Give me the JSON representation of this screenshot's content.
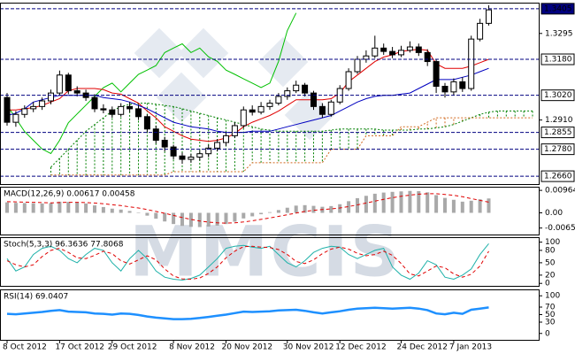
{
  "watermark": "MMCIS",
  "chart_data": [
    {
      "type": "candlestick",
      "open": [
        1.301,
        1.29,
        1.2935,
        1.296,
        1.297,
        1.2995,
        1.303,
        1.311,
        1.304,
        1.303,
        1.301,
        1.296,
        1.2955,
        1.2935,
        1.297,
        1.296,
        1.2925,
        1.287,
        1.282,
        1.279,
        1.275,
        1.2735,
        1.2745,
        1.276,
        1.2785,
        1.281,
        1.284,
        1.2885,
        1.2955,
        1.2945,
        1.297,
        1.2985,
        1.3015,
        1.304,
        1.3065,
        1.303,
        1.297,
        1.2935,
        1.299,
        1.305,
        1.3125,
        1.318,
        1.3195,
        1.323,
        1.3215,
        1.32,
        1.322,
        1.3235,
        1.321,
        1.317,
        1.306,
        1.3035,
        1.308,
        1.305,
        1.327,
        1.334
      ],
      "high": [
        1.303,
        1.295,
        1.2975,
        1.299,
        1.301,
        1.3045,
        1.313,
        1.312,
        1.306,
        1.3045,
        1.3025,
        1.298,
        1.297,
        1.2985,
        1.299,
        1.2975,
        1.2935,
        1.2885,
        1.2835,
        1.28,
        1.2765,
        1.276,
        1.2775,
        1.28,
        1.2825,
        1.2855,
        1.29,
        1.297,
        1.2975,
        1.299,
        1.3,
        1.303,
        1.3055,
        1.3085,
        1.3075,
        1.304,
        1.2985,
        1.3,
        1.3065,
        1.314,
        1.3195,
        1.322,
        1.3285,
        1.325,
        1.3235,
        1.324,
        1.326,
        1.325,
        1.3225,
        1.318,
        1.3075,
        1.3095,
        1.31,
        1.3285,
        1.336,
        1.342
      ],
      "low": [
        1.2885,
        1.288,
        1.292,
        1.2945,
        1.2955,
        1.298,
        1.302,
        1.3025,
        1.3015,
        1.2995,
        1.2945,
        1.294,
        1.292,
        1.2925,
        1.2945,
        1.291,
        1.2855,
        1.2805,
        1.277,
        1.2735,
        1.2715,
        1.272,
        1.273,
        1.2745,
        1.277,
        1.2795,
        1.283,
        1.2875,
        1.293,
        1.2935,
        1.2955,
        1.2975,
        1.3,
        1.303,
        1.3015,
        1.2955,
        1.292,
        1.2925,
        1.298,
        1.304,
        1.3115,
        1.3165,
        1.3185,
        1.32,
        1.3185,
        1.319,
        1.321,
        1.3195,
        1.315,
        1.303,
        1.301,
        1.302,
        1.3035,
        1.304,
        1.326,
        1.333
      ],
      "close": [
        1.29,
        1.2935,
        1.296,
        1.297,
        1.2995,
        1.303,
        1.311,
        1.304,
        1.303,
        1.301,
        1.296,
        1.2955,
        1.2935,
        1.297,
        1.296,
        1.2925,
        1.287,
        1.282,
        1.279,
        1.275,
        1.2735,
        1.2745,
        1.276,
        1.2785,
        1.281,
        1.284,
        1.2885,
        1.2955,
        1.2945,
        1.297,
        1.2985,
        1.3015,
        1.304,
        1.3065,
        1.303,
        1.297,
        1.2935,
        1.299,
        1.305,
        1.3125,
        1.318,
        1.3195,
        1.323,
        1.3215,
        1.32,
        1.322,
        1.3235,
        1.321,
        1.317,
        1.306,
        1.3035,
        1.308,
        1.305,
        1.327,
        1.334,
        1.34
      ],
      "up_color": "#ffffff",
      "down_color": "#000000",
      "cloud": {
        "span_a": {
          "color": "#008000",
          "values": [
            null,
            null,
            null,
            null,
            null,
            1.27,
            1.274,
            1.278,
            1.282,
            1.286,
            1.289,
            1.292,
            1.295,
            1.297,
            1.298,
            1.2985,
            1.2985,
            1.298,
            1.2975,
            1.297,
            1.296,
            1.295,
            1.294,
            1.293,
            1.292,
            1.291,
            1.29,
            1.289,
            1.288,
            1.287,
            1.2865,
            1.286,
            1.286,
            1.286,
            1.286,
            1.286,
            1.286,
            1.2865,
            1.287,
            1.287,
            1.287,
            1.287,
            1.287,
            1.2865,
            1.2865,
            1.2865,
            1.2865,
            1.287,
            1.287,
            1.2875,
            1.288,
            1.289,
            1.2905,
            1.292,
            1.2935,
            1.2945,
            1.295,
            1.295,
            1.295,
            1.295,
            1.295
          ]
        },
        "span_b": {
          "color": "#d2691e",
          "values": [
            null,
            null,
            null,
            null,
            null,
            1.2665,
            1.2665,
            1.2665,
            1.2665,
            1.2665,
            1.2665,
            1.2665,
            1.2665,
            1.2665,
            1.2665,
            1.2665,
            1.2665,
            1.2665,
            1.2665,
            1.268,
            1.268,
            1.268,
            1.268,
            1.268,
            1.268,
            1.268,
            1.268,
            1.268,
            1.272,
            1.272,
            1.272,
            1.272,
            1.272,
            1.272,
            1.272,
            1.272,
            1.272,
            1.278,
            1.278,
            1.278,
            1.278,
            1.284,
            1.284,
            1.284,
            1.284,
            1.288,
            1.288,
            1.288,
            1.29,
            1.292,
            1.292,
            1.292,
            1.292,
            1.292,
            1.292,
            1.292,
            1.292,
            1.292,
            1.292,
            1.292,
            1.292
          ]
        }
      },
      "series": [
        {
          "color": "#00c000",
          "style": "solid",
          "values": [
            1.2976,
            1.2917,
            1.2859,
            1.282,
            1.2781,
            1.2761,
            1.282,
            1.2898,
            1.2937,
            1.2976,
            1.3015,
            1.3054,
            1.3074,
            1.3035,
            1.3074,
            1.3113,
            1.3132,
            1.3152,
            1.321,
            1.323,
            1.3249,
            1.321,
            1.323,
            1.3191,
            1.3171,
            1.3132,
            1.3113,
            1.3093,
            1.3074,
            1.3054,
            1.3074,
            1.3171,
            1.3308,
            1.3386,
            null,
            null,
            null,
            null,
            null,
            null,
            null,
            null,
            null,
            null,
            null,
            null,
            null,
            null,
            null,
            null,
            null,
            null,
            null,
            null,
            null,
            null
          ]
        },
        {
          "color": "#e00000",
          "style": "solid",
          "values": [
            1.2955,
            1.2955,
            1.296,
            1.2965,
            1.2975,
            1.299,
            1.3005,
            1.304,
            1.305,
            1.305,
            1.305,
            1.3045,
            1.303,
            1.3025,
            1.3005,
            1.2985,
            1.295,
            1.292,
            1.288,
            1.286,
            1.284,
            1.2825,
            1.282,
            1.2815,
            1.282,
            1.283,
            1.285,
            1.288,
            1.29,
            1.2915,
            1.293,
            1.295,
            1.2975,
            1.3,
            1.3,
            1.3,
            1.3,
            1.3005,
            1.303,
            1.308,
            1.311,
            1.314,
            1.317,
            1.319,
            1.32,
            1.3215,
            1.322,
            1.3225,
            1.322,
            1.316,
            1.314,
            1.314,
            1.314,
            1.315,
            1.3165,
            1.318
          ]
        },
        {
          "color": "#0000c0",
          "style": "solid",
          "values": [
            1.293,
            1.294,
            1.296,
            1.299,
            1.3,
            1.301,
            1.302,
            1.302,
            1.302,
            1.302,
            1.302,
            1.301,
            1.3005,
            1.3,
            1.299,
            1.2975,
            1.296,
            1.294,
            1.292,
            1.29,
            1.289,
            1.288,
            1.2875,
            1.287,
            1.286,
            1.2855,
            1.2855,
            1.2855,
            1.286,
            1.286,
            1.286,
            1.287,
            1.288,
            1.289,
            1.29,
            1.291,
            1.292,
            1.293,
            1.295,
            1.297,
            1.299,
            1.3005,
            1.3015,
            1.302,
            1.302,
            1.3025,
            1.303,
            1.305,
            1.307,
            1.309,
            1.309,
            1.309,
            1.31,
            1.311,
            1.3125,
            1.314
          ]
        }
      ],
      "ylim": [
        1.2625,
        1.3432
      ],
      "yticks": [
        {
          "value": 1.3295,
          "label": "1.3295"
        },
        {
          "value": 1.291,
          "label": "1.2910"
        }
      ],
      "levels": [
        1.3405,
        {
          "value": 1.318,
          "label": "1.3180"
        },
        {
          "value": 1.302,
          "label": "1.3020"
        },
        1.2855,
        {
          "value": 1.278,
          "label": "1.2780"
        },
        {
          "value": 1.266,
          "label": "1.2660"
        }
      ],
      "xticks": [
        {
          "value": 0,
          "label": "8 Oct 2012"
        },
        {
          "value": 6,
          "label": "17 Oct 2012"
        },
        {
          "value": 12,
          "label": "29 Oct 2012"
        },
        {
          "value": 19,
          "label": "8 Nov 2012"
        },
        {
          "value": 25,
          "label": "20 Nov 2012"
        },
        {
          "value": 32,
          "label": "30 Nov 2012"
        },
        {
          "value": 38,
          "label": "12 Dec 2012"
        },
        {
          "value": 45,
          "label": "24 Dec 2012"
        },
        {
          "value": 51,
          "label": "7 Jan 2013"
        }
      ]
    },
    {
      "type": "macd",
      "label": "MACD(12,26,9) 0.00617 0.00458",
      "histogram": {
        "color": "#a9a9a9",
        "values": [
          0.0045,
          0.0043,
          0.0042,
          0.0041,
          0.004,
          0.0042,
          0.0048,
          0.0047,
          0.0045,
          0.004,
          0.0032,
          0.0025,
          0.0018,
          0.0014,
          0.0008,
          0.0,
          -0.0012,
          -0.0025,
          -0.0037,
          -0.0048,
          -0.0056,
          -0.006,
          -0.0061,
          -0.0059,
          -0.0055,
          -0.0048,
          -0.0038,
          -0.0024,
          -0.0015,
          -0.0006,
          0.0003,
          0.0012,
          0.0022,
          0.0031,
          0.0033,
          0.003,
          0.0026,
          0.0029,
          0.0037,
          0.005,
          0.0063,
          0.0073,
          0.0082,
          0.0087,
          0.009,
          0.0092,
          0.0094,
          0.0093,
          0.0088,
          0.0076,
          0.0064,
          0.0056,
          0.0048,
          0.0052,
          0.0058,
          0.00617
        ]
      },
      "series": [
        {
          "color": "#e00000",
          "style": "dashed",
          "values": [
            0.0048,
            0.0047,
            0.0046,
            0.0045,
            0.0044,
            0.0043,
            0.0044,
            0.0045,
            0.0045,
            0.0044,
            0.0042,
            0.0039,
            0.0035,
            0.0031,
            0.0026,
            0.0021,
            0.0014,
            0.0006,
            -0.0002,
            -0.0011,
            -0.002,
            -0.0028,
            -0.0035,
            -0.004,
            -0.0043,
            -0.0044,
            -0.0043,
            -0.0039,
            -0.0034,
            -0.0028,
            -0.0022,
            -0.0015,
            -0.0008,
            -0.0001,
            0.0006,
            0.0011,
            0.0014,
            0.0017,
            0.0021,
            0.0027,
            0.0034,
            0.0042,
            0.005,
            0.0058,
            0.0065,
            0.0071,
            0.0076,
            0.008,
            0.0082,
            0.0082,
            0.0079,
            0.0075,
            0.0069,
            0.0061,
            0.00536,
            0.00458
          ]
        }
      ],
      "ylim": [
        -0.0093,
        0.0112
      ],
      "yticks": [
        0.00964,
        {
          "value": 0,
          "label": "0.00"
        },
        -0.00652
      ]
    },
    {
      "type": "line",
      "label": "Stoch(5,3,3) 96.3636 77.8068",
      "series": [
        {
          "color": "#20b2aa",
          "style": "solid",
          "values": [
            60,
            30,
            40,
            70,
            85,
            90,
            80,
            60,
            50,
            70,
            85,
            80,
            50,
            30,
            60,
            80,
            60,
            30,
            15,
            10,
            8,
            12,
            20,
            40,
            60,
            85,
            90,
            92,
            88,
            85,
            90,
            70,
            50,
            40,
            55,
            75,
            85,
            90,
            88,
            70,
            60,
            70,
            80,
            85,
            40,
            20,
            10,
            25,
            55,
            45,
            15,
            10,
            20,
            35,
            70,
            96.3636
          ]
        },
        {
          "color": "#e00000",
          "style": "dashed",
          "values": [
            55,
            45,
            40,
            45,
            65,
            80,
            85,
            75,
            62,
            60,
            68,
            78,
            72,
            55,
            47,
            57,
            67,
            57,
            35,
            18,
            11,
            10,
            13,
            24,
            40,
            62,
            78,
            89,
            90,
            88,
            87,
            82,
            70,
            53,
            48,
            57,
            72,
            83,
            88,
            83,
            73,
            67,
            70,
            78,
            68,
            48,
            23,
            18,
            30,
            42,
            38,
            23,
            15,
            22,
            42,
            77.8068
          ]
        }
      ],
      "ylim": [
        -6,
        112
      ],
      "yticks": [
        100,
        80,
        50,
        20,
        0
      ]
    },
    {
      "type": "line",
      "label": "RSI(14) 69.0407",
      "series": [
        {
          "color": "#1e90ff",
          "style": "thick",
          "values": [
            52,
            51,
            53,
            55,
            57,
            60,
            62,
            58,
            57,
            56,
            53,
            52,
            50,
            53,
            52,
            49,
            45,
            42,
            40,
            38,
            38,
            39,
            41,
            44,
            47,
            50,
            54,
            58,
            57,
            58,
            59,
            61,
            62,
            63,
            60,
            56,
            53,
            56,
            59,
            63,
            66,
            67,
            68,
            67,
            66,
            67,
            68,
            66,
            62,
            53,
            51,
            55,
            52,
            63,
            66,
            69.0407
          ]
        }
      ],
      "ylim": [
        -17,
        117
      ],
      "yticks": [
        100,
        70,
        50,
        30,
        0
      ]
    }
  ]
}
